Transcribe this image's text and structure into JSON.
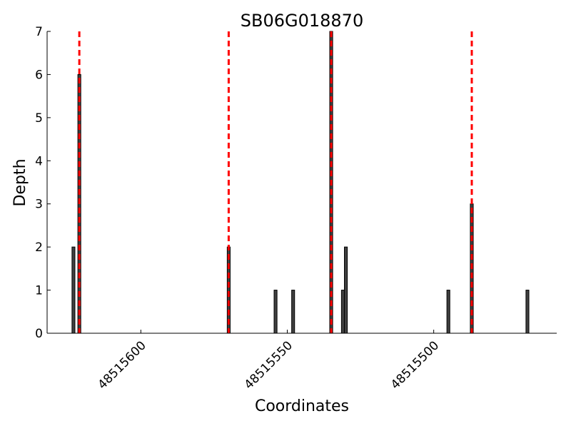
{
  "chart_data": {
    "type": "bar",
    "title": "SB06G018870",
    "xlabel": "Coordinates",
    "ylabel": "Depth",
    "xlim": [
      48515632,
      48515458
    ],
    "x_reversed": true,
    "ylim": [
      0,
      7
    ],
    "xticks": [
      48515600,
      48515550,
      48515500
    ],
    "yticks": [
      0,
      1,
      2,
      3,
      4,
      5,
      6,
      7
    ],
    "grid": false,
    "bar_color": "#404040",
    "series": [
      {
        "x": [
          48515623,
          48515621,
          48515570,
          48515554,
          48515548,
          48515535,
          48515531,
          48515530,
          48515495,
          48515487,
          48515468
        ],
        "values": [
          2,
          6,
          2,
          1,
          1,
          7,
          1,
          2,
          1,
          3,
          1
        ]
      }
    ],
    "vlines": {
      "x": [
        48515621,
        48515570,
        48515535,
        48515487
      ],
      "color": "#ff0000",
      "style": "dashed"
    }
  }
}
